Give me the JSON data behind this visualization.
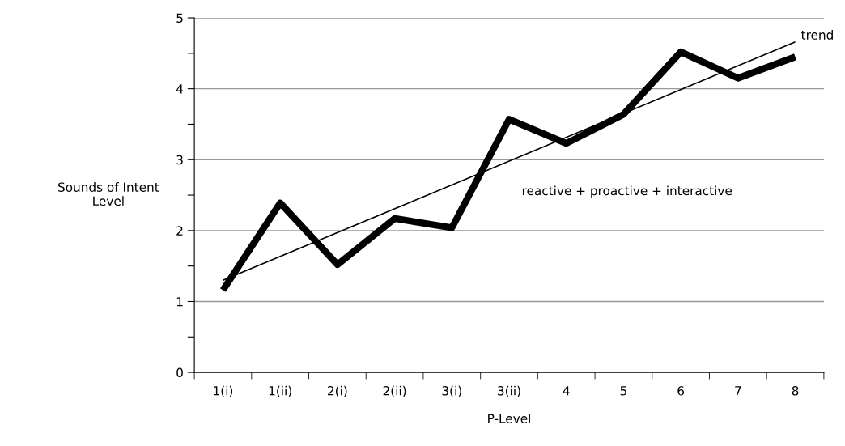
{
  "chart_data": {
    "type": "line",
    "xlabel": "P-Level",
    "ylabel": "Sounds of Intent\nLevel",
    "categories": [
      "1(i)",
      "1(ii)",
      "2(i)",
      "2(ii)",
      "3(i)",
      "3(ii)",
      "4",
      "5",
      "6",
      "7",
      "8"
    ],
    "series": [
      {
        "color": "#000000",
        "values": [
          1.16,
          2.39,
          1.52,
          2.17,
          2.04,
          3.57,
          3.23,
          3.64,
          4.52,
          4.15,
          4.45
        ]
      },
      {
        "name": "trend",
        "color": "#000000",
        "values": [
          1.3,
          null,
          null,
          null,
          null,
          null,
          null,
          null,
          null,
          null,
          4.66
        ]
      }
    ],
    "ylim": [
      0,
      5
    ],
    "yticks": [
      0,
      {
        "value": 0.5,
        "label": null
      },
      1,
      {
        "value": 1.5,
        "label": null
      },
      2,
      {
        "value": 2.5,
        "label": null
      },
      3,
      {
        "value": 3.5,
        "label": null
      },
      4,
      {
        "value": 4.5,
        "label": null
      },
      5
    ],
    "annotations": [
      "reactive + proactive + interactive"
    ],
    "grid": "y",
    "legend": false,
    "marker": "none",
    "line_style": "solid"
  }
}
